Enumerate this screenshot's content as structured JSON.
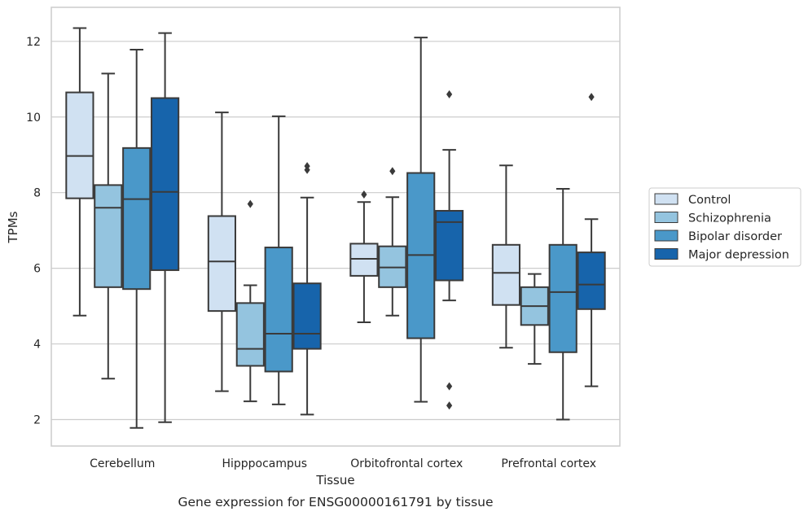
{
  "chart_data": {
    "type": "box",
    "caption": "Gene expression for ENSG00000161791 by tissue",
    "xlabel": "Tissue",
    "ylabel": "TPMs",
    "ylim": [
      1.3,
      12.9
    ],
    "yticks": [
      2,
      4,
      6,
      8,
      10,
      12
    ],
    "grid": "horizontal",
    "legend_position": "right",
    "categories": [
      "Cerebellum",
      "Hipppocampus",
      "Orbitofrontal cortex",
      "Prefrontal cortex"
    ],
    "series": [
      {
        "name": "Control",
        "color": "#d0e1f2",
        "boxes": [
          {
            "min": 4.75,
            "q1": 7.85,
            "median": 8.97,
            "q3": 10.65,
            "max": 12.35,
            "outliers": []
          },
          {
            "min": 2.75,
            "q1": 4.87,
            "median": 6.18,
            "q3": 7.38,
            "max": 10.12,
            "outliers": []
          },
          {
            "min": 4.57,
            "q1": 5.8,
            "median": 6.25,
            "q3": 6.65,
            "max": 7.75,
            "outliers": [
              7.95
            ]
          },
          {
            "min": 3.9,
            "q1": 5.03,
            "median": 5.88,
            "q3": 6.62,
            "max": 8.72,
            "outliers": []
          }
        ]
      },
      {
        "name": "Schizophrenia",
        "color": "#94c4df",
        "boxes": [
          {
            "min": 3.08,
            "q1": 5.5,
            "median": 7.6,
            "q3": 8.2,
            "max": 11.15,
            "outliers": []
          },
          {
            "min": 2.48,
            "q1": 3.42,
            "median": 3.87,
            "q3": 5.08,
            "max": 5.55,
            "outliers": [
              7.7
            ]
          },
          {
            "min": 4.75,
            "q1": 5.5,
            "median": 6.02,
            "q3": 6.58,
            "max": 7.88,
            "outliers": [
              8.57
            ]
          },
          {
            "min": 3.47,
            "q1": 4.5,
            "median": 5.0,
            "q3": 5.5,
            "max": 5.85,
            "outliers": []
          }
        ]
      },
      {
        "name": "Bipolar disorder",
        "color": "#4a98c9",
        "boxes": [
          {
            "min": 1.78,
            "q1": 5.45,
            "median": 7.83,
            "q3": 9.18,
            "max": 11.78,
            "outliers": []
          },
          {
            "min": 2.4,
            "q1": 3.27,
            "median": 4.27,
            "q3": 6.55,
            "max": 10.02,
            "outliers": []
          },
          {
            "min": 2.47,
            "q1": 4.15,
            "median": 6.35,
            "q3": 8.52,
            "max": 12.1,
            "outliers": []
          },
          {
            "min": 2.0,
            "q1": 3.78,
            "median": 5.37,
            "q3": 6.62,
            "max": 8.1,
            "outliers": []
          }
        ]
      },
      {
        "name": "Major depression",
        "color": "#1764ab",
        "boxes": [
          {
            "min": 1.93,
            "q1": 5.95,
            "median": 8.02,
            "q3": 10.5,
            "max": 12.22,
            "outliers": []
          },
          {
            "min": 2.13,
            "q1": 3.87,
            "median": 4.27,
            "q3": 5.6,
            "max": 7.87,
            "outliers": [
              8.6,
              8.7
            ]
          },
          {
            "min": 5.15,
            "q1": 5.68,
            "median": 7.22,
            "q3": 7.52,
            "max": 9.13,
            "outliers": [
              10.6,
              2.88,
              2.37
            ]
          },
          {
            "min": 2.88,
            "q1": 4.92,
            "median": 5.57,
            "q3": 6.42,
            "max": 7.3,
            "outliers": [
              10.53
            ]
          }
        ]
      }
    ]
  }
}
